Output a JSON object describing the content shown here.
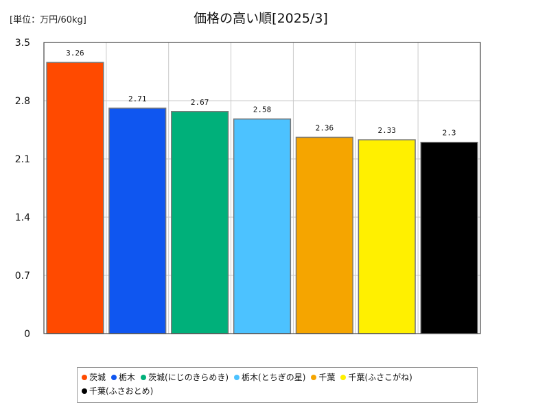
{
  "unit_label": "[単位：万円/60kg]",
  "chart_data": {
    "type": "bar",
    "title": "価格の高い順[2025/3]",
    "categories": [
      "茨城",
      "栃木",
      "茨城(にじのきらめき)",
      "栃木(とちぎの星)",
      "千葉",
      "千葉(ふさこがね)",
      "千葉(ふさおとめ)"
    ],
    "values": [
      3.26,
      2.71,
      2.67,
      2.58,
      2.36,
      2.33,
      2.3
    ],
    "value_labels": [
      "3.26",
      "2.71",
      "2.67",
      "2.58",
      "2.36",
      "2.33",
      "2.3"
    ],
    "colors": [
      "#ff4a00",
      "#0f56f0",
      "#00b07a",
      "#4cc2ff",
      "#f5a500",
      "#fff000",
      "#000000"
    ],
    "ylim": [
      0,
      3.5
    ],
    "yticks": [
      "0",
      "0.7",
      "1.4",
      "2.1",
      "2.8",
      "3.5"
    ],
    "xlabel": "",
    "ylabel": "",
    "grid": true,
    "legend_position": "bottom"
  }
}
